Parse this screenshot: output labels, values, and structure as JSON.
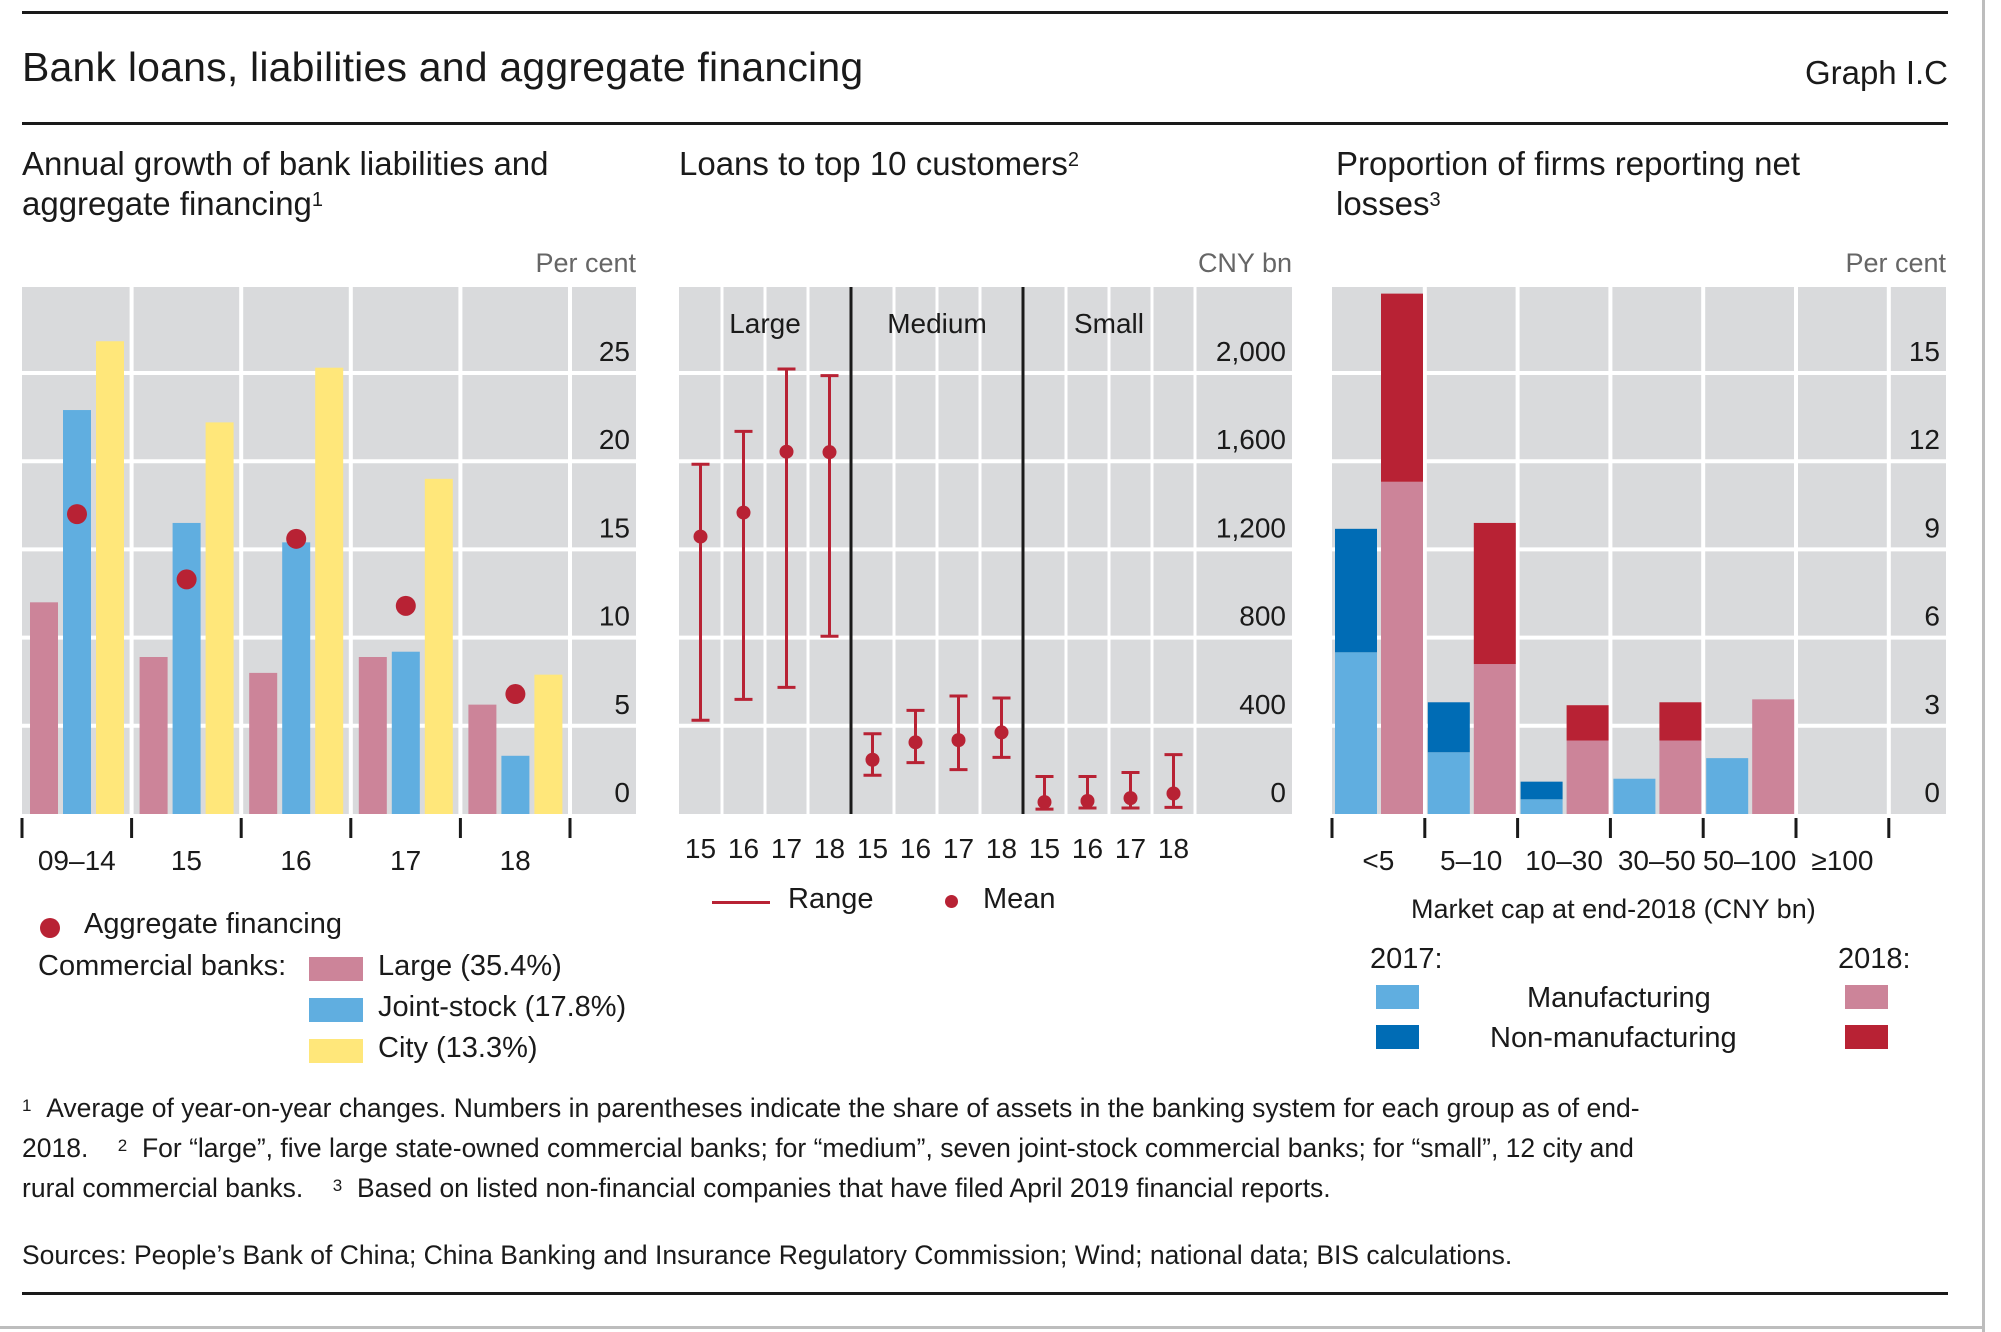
{
  "header": {
    "title": "Bank loans, liabilities and aggregate financing",
    "graph_id": "Graph I.C"
  },
  "panels": {
    "left": {
      "title_line1": "Annual growth of bank liabilities and",
      "title_line2": "aggregate financing",
      "title_sup": "1",
      "unit": "Per cent"
    },
    "middle": {
      "title": "Loans to top 10 customers",
      "title_sup": "2",
      "unit": "CNY bn"
    },
    "right": {
      "title_line1": "Proportion of firms reporting net",
      "title_line2": "losses",
      "title_sup": "3",
      "unit": "Per cent"
    }
  },
  "legends": {
    "left": {
      "dot_label": "Aggregate financing",
      "group_label": "Commercial banks:",
      "items": [
        {
          "label": "Large (35.4%)",
          "color": "#CC8499"
        },
        {
          "label": "Joint-stock (17.8%)",
          "color": "#60AEE0"
        },
        {
          "label": "City (13.3%)",
          "color": "#FFE77A"
        }
      ]
    },
    "middle": {
      "range_label": "Range",
      "mean_label": "Mean"
    },
    "right": {
      "xlabel": "Market cap at end-2018 (CNY bn)",
      "year1": "2017:",
      "year2": "2018:",
      "row1": "Manufacturing",
      "row2": "Non-manufacturing"
    }
  },
  "footnotes": {
    "line1": "Average of year-on-year changes. Numbers in parentheses indicate the share of assets in the banking system for each group as of end-",
    "line2a": "2018.",
    "line2b": "For “large”, five large state-owned commercial banks; for “medium”, seven joint-stock commercial banks; for “small”, 12 city and",
    "line3a": "rural commercial banks.",
    "line3b": "Based on listed non-financial companies that have filed April 2019 financial reports.",
    "sup1": "1",
    "sup2": "2",
    "sup3": "3",
    "sources": "Sources: People’s Bank of China; China Banking and Insurance Regulatory Commission; Wind; national data; BIS calculations."
  },
  "colors": {
    "plot_bg": "#D9DADC",
    "grid": "#FFFFFF",
    "red": "#B82234",
    "pink": "#CC8499",
    "light_blue": "#60AEE0",
    "dark_blue": "#006CB5",
    "yellow": "#FFE77A"
  },
  "chart_data": [
    {
      "type": "bar",
      "title": "Annual growth of bank liabilities and aggregate financing",
      "ylabel": "Per cent",
      "categories": [
        "09–14",
        "15",
        "16",
        "17",
        "18"
      ],
      "ylim": [
        0,
        28
      ],
      "yticks": [
        0,
        5,
        10,
        15,
        20,
        25
      ],
      "grid": true,
      "series": [
        {
          "name": "Large (35.4%)",
          "kind": "bar",
          "color": "#CC8499",
          "values": [
            12.0,
            8.9,
            8.0,
            8.9,
            6.2
          ]
        },
        {
          "name": "Joint-stock (17.8%)",
          "kind": "bar",
          "color": "#60AEE0",
          "values": [
            22.9,
            16.5,
            15.4,
            9.2,
            3.3
          ]
        },
        {
          "name": "City (13.3%)",
          "kind": "bar",
          "color": "#FFE77A",
          "values": [
            26.8,
            22.2,
            25.3,
            19.0,
            7.9
          ]
        },
        {
          "name": "Aggregate financing",
          "kind": "dot",
          "color": "#B82234",
          "values": [
            17.0,
            13.3,
            15.6,
            11.8,
            6.8
          ]
        }
      ]
    },
    {
      "type": "scatter",
      "subtype": "range-and-mean",
      "title": "Loans to top 10 customers",
      "ylabel": "CNY bn",
      "ylim": [
        0,
        2400
      ],
      "yticks": [
        0,
        400,
        800,
        1200,
        1600,
        2000
      ],
      "ytick_labels": [
        "0",
        "400",
        "800",
        "1,200",
        "1,600",
        "2,000"
      ],
      "grid": true,
      "groups": [
        {
          "name": "Large",
          "x": [
            "15",
            "16",
            "17",
            "18"
          ],
          "low": [
            425,
            520,
            574,
            806
          ],
          "high": [
            1586,
            1735,
            2018,
            1988
          ],
          "mean": [
            1258,
            1367,
            1643,
            1641
          ]
        },
        {
          "name": "Medium",
          "x": [
            "15",
            "16",
            "17",
            "18"
          ],
          "low": [
            176,
            233,
            201,
            257
          ],
          "high": [
            364,
            470,
            535,
            526
          ],
          "mean": [
            246,
            325,
            335,
            370
          ]
        },
        {
          "name": "Small",
          "x": [
            "15",
            "16",
            "17",
            "18"
          ],
          "low": [
            22,
            27,
            27,
            30
          ],
          "high": [
            170,
            170,
            188,
            269
          ],
          "mean": [
            54,
            59,
            72,
            93
          ]
        }
      ],
      "legend": [
        "Range",
        "Mean"
      ]
    },
    {
      "type": "bar",
      "subtype": "stacked-grouped",
      "title": "Proportion of firms reporting net losses",
      "xlabel": "Market cap at end-2018 (CNY bn)",
      "ylabel": "Per cent",
      "categories": [
        "<5",
        "5–10",
        "10–30",
        "30–50",
        "50–100",
        "≥100"
      ],
      "ylim": [
        0,
        18
      ],
      "yticks": [
        0,
        3,
        6,
        9,
        12,
        15
      ],
      "grid": true,
      "series": [
        {
          "name": "2017 Manufacturing",
          "year": "2017",
          "color": "#60AEE0",
          "values": [
            5.5,
            2.1,
            0.5,
            1.2,
            1.9,
            0
          ]
        },
        {
          "name": "2017 Non-manufacturing",
          "year": "2017",
          "color": "#006CB5",
          "values": [
            4.2,
            1.7,
            0.6,
            0,
            0,
            0
          ]
        },
        {
          "name": "2018 Manufacturing",
          "year": "2018",
          "color": "#CC8499",
          "values": [
            11.3,
            5.1,
            2.5,
            2.5,
            3.9,
            0
          ]
        },
        {
          "name": "2018 Non-manufacturing",
          "year": "2018",
          "color": "#B82234",
          "values": [
            6.4,
            4.8,
            1.2,
            1.3,
            0,
            0
          ]
        }
      ]
    }
  ]
}
